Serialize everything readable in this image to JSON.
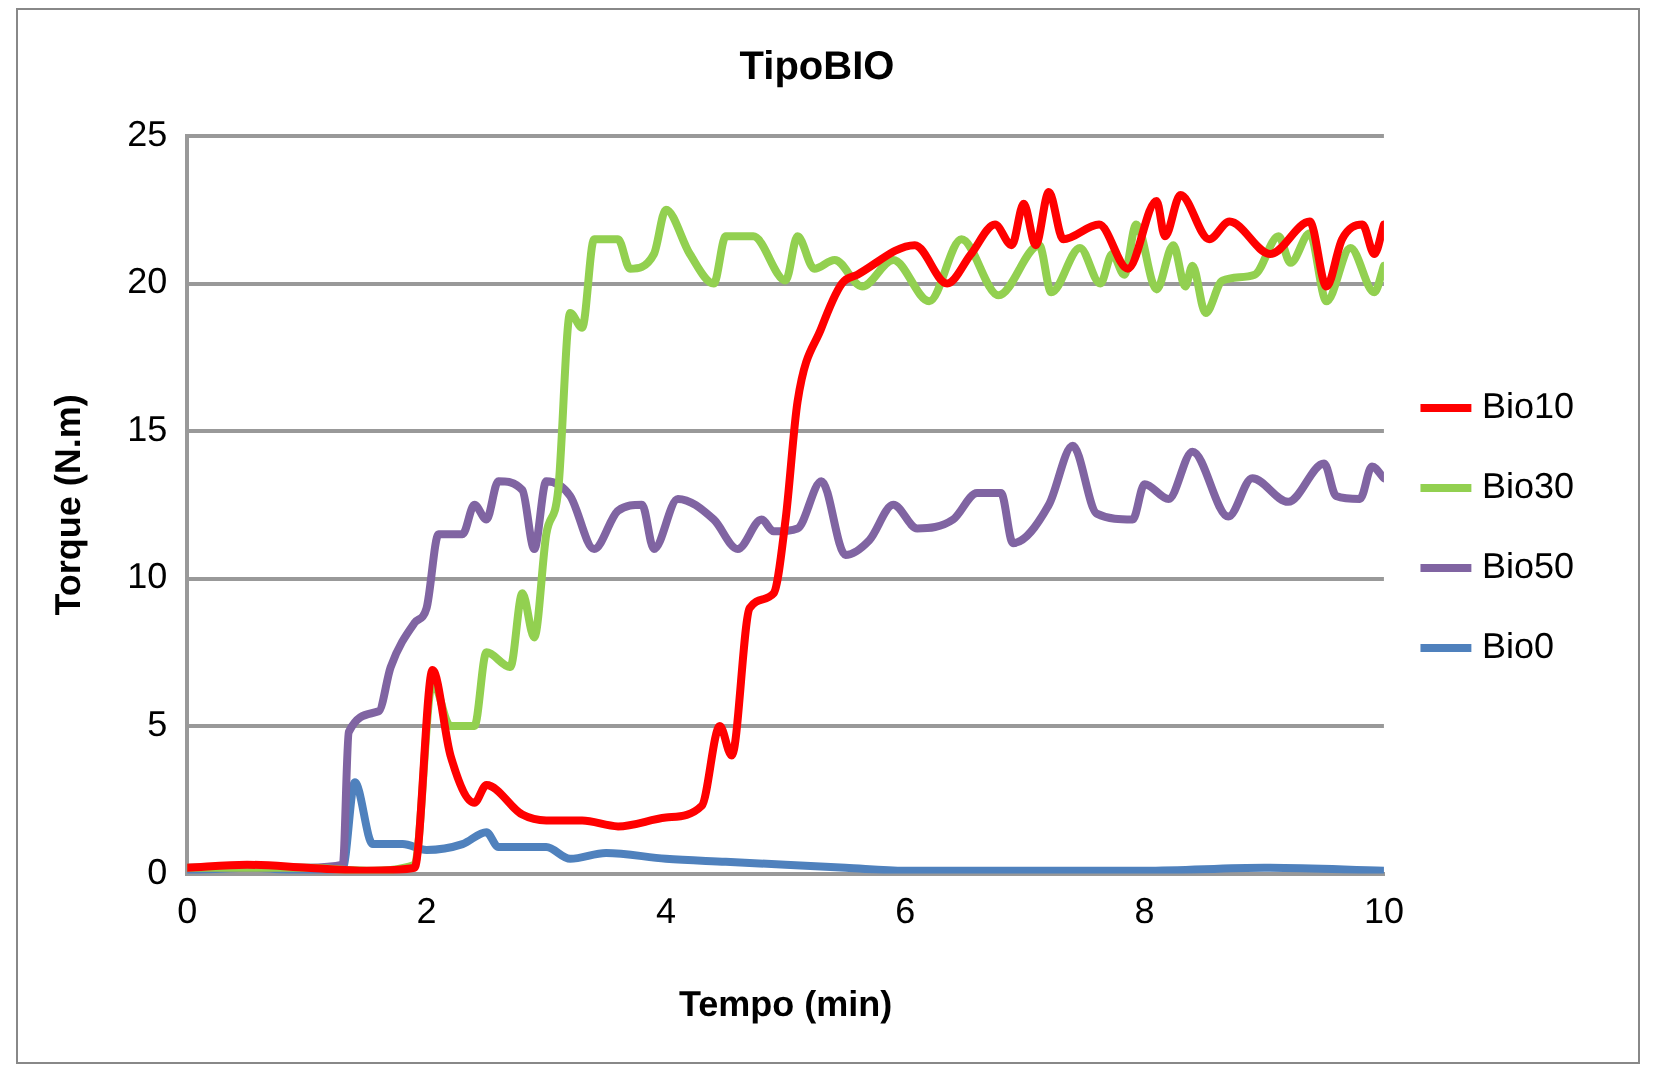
{
  "chart_data": {
    "type": "line",
    "title": "TipoBIO",
    "xlabel": "Tempo (min)",
    "ylabel": "Torque (N.m)",
    "xlim": [
      0,
      10
    ],
    "xticks": [
      0,
      2,
      4,
      6,
      8,
      10
    ],
    "ylim": [
      0,
      25
    ],
    "yticks": [
      0,
      5,
      10,
      15,
      20,
      25
    ],
    "grid": "y",
    "legend": "right",
    "marker": "none",
    "line_style": "solid",
    "series": [
      {
        "name": "Bio10",
        "color": "#ff0000",
        "x": [
          0,
          0.5,
          1,
          1.5,
          1.9,
          2.05,
          2.2,
          2.4,
          2.5,
          2.8,
          3.0,
          3.3,
          3.6,
          4.0,
          4.3,
          4.45,
          4.55,
          4.7,
          4.9,
          5.0,
          5.1,
          5.3,
          5.47,
          5.6,
          6.08,
          6.35,
          6.55,
          6.75,
          6.89,
          6.99,
          7.09,
          7.2,
          7.32,
          7.62,
          7.86,
          8.1,
          8.17,
          8.3,
          8.54,
          8.71,
          9.05,
          9.38,
          9.52,
          9.65,
          9.82,
          9.92,
          10
        ],
        "values": [
          0.2,
          0.3,
          0.2,
          0.1,
          0.2,
          6.9,
          4.0,
          2.4,
          3.0,
          2.0,
          1.8,
          1.8,
          1.6,
          1.9,
          2.3,
          5.0,
          4.0,
          9.0,
          9.5,
          12.0,
          16.0,
          18.5,
          20.0,
          20.3,
          21.3,
          20.0,
          21.0,
          22.0,
          21.3,
          22.7,
          21.3,
          23.1,
          21.5,
          22.0,
          20.5,
          22.8,
          21.6,
          23.0,
          21.5,
          22.1,
          21.0,
          22.1,
          19.9,
          21.5,
          22.0,
          21.0,
          22.0
        ]
      },
      {
        "name": "Bio30",
        "color": "#92d050",
        "x": [
          0,
          0.5,
          1,
          1.5,
          1.9,
          2.05,
          2.2,
          2.4,
          2.5,
          2.7,
          2.8,
          2.9,
          3.0,
          3.1,
          3.2,
          3.3,
          3.4,
          3.6,
          3.7,
          3.9,
          4.0,
          4.2,
          4.4,
          4.5,
          4.73,
          5.0,
          5.1,
          5.24,
          5.41,
          5.64,
          5.9,
          6.2,
          6.47,
          6.78,
          7.12,
          7.22,
          7.46,
          7.63,
          7.73,
          7.83,
          7.93,
          8.1,
          8.24,
          8.34,
          8.4,
          8.51,
          8.65,
          8.92,
          9.12,
          9.22,
          9.38,
          9.52,
          9.72,
          9.92,
          10
        ],
        "values": [
          0.2,
          0.2,
          0.2,
          0.1,
          0.3,
          6.5,
          5.0,
          5.0,
          7.5,
          7.0,
          9.5,
          8.0,
          11.5,
          13.0,
          19.0,
          18.5,
          21.5,
          21.5,
          20.5,
          21.0,
          22.5,
          21.0,
          20.0,
          21.6,
          21.6,
          20.1,
          21.6,
          20.5,
          20.8,
          19.9,
          20.8,
          19.4,
          21.5,
          19.6,
          21.3,
          19.7,
          21.2,
          20.0,
          21.0,
          20.3,
          22.0,
          19.8,
          21.3,
          19.9,
          20.6,
          19.0,
          20.1,
          20.3,
          21.6,
          20.7,
          21.7,
          19.4,
          21.2,
          19.7,
          20.6
        ]
      },
      {
        "name": "Bio50",
        "color": "#8064a2",
        "x": [
          0,
          0.5,
          1,
          1.3,
          1.35,
          1.6,
          1.7,
          1.9,
          2.0,
          2.1,
          2.3,
          2.4,
          2.5,
          2.6,
          2.8,
          2.9,
          3.0,
          3.2,
          3.4,
          3.6,
          3.8,
          3.9,
          4.1,
          4.4,
          4.6,
          4.8,
          4.9,
          5.1,
          5.3,
          5.5,
          5.7,
          5.9,
          6.1,
          6.4,
          6.6,
          6.8,
          6.9,
          7.2,
          7.4,
          7.6,
          7.9,
          8.0,
          8.2,
          8.4,
          8.7,
          8.9,
          9.2,
          9.5,
          9.6,
          9.8,
          9.9,
          10
        ],
        "values": [
          0.2,
          0.2,
          0.2,
          0.3,
          4.8,
          5.5,
          7.0,
          8.5,
          9.0,
          11.5,
          11.5,
          12.5,
          12.0,
          13.3,
          13.0,
          11.0,
          13.3,
          12.8,
          11.0,
          12.3,
          12.5,
          11.0,
          12.7,
          12.0,
          11.0,
          12.0,
          11.6,
          11.7,
          13.3,
          10.8,
          11.3,
          12.5,
          11.7,
          12.0,
          12.9,
          12.9,
          11.2,
          12.5,
          14.5,
          12.2,
          12.0,
          13.2,
          12.7,
          14.3,
          12.1,
          13.4,
          12.6,
          13.9,
          12.8,
          12.7,
          13.8,
          13.4
        ]
      },
      {
        "name": "Bio0",
        "color": "#4f81bd",
        "x": [
          0,
          0.5,
          1,
          1.3,
          1.4,
          1.55,
          1.8,
          2.0,
          2.3,
          2.5,
          2.6,
          3.0,
          3.2,
          3.5,
          4.0,
          4.5,
          5.0,
          5.5,
          6.0,
          7.0,
          8.0,
          9.0,
          10
        ],
        "values": [
          0.1,
          0.2,
          0.1,
          0.2,
          3.1,
          1.0,
          1.0,
          0.8,
          1.0,
          1.4,
          0.9,
          0.9,
          0.5,
          0.7,
          0.5,
          0.4,
          0.3,
          0.2,
          0.1,
          0.1,
          0.1,
          0.2,
          0.1
        ]
      }
    ]
  }
}
